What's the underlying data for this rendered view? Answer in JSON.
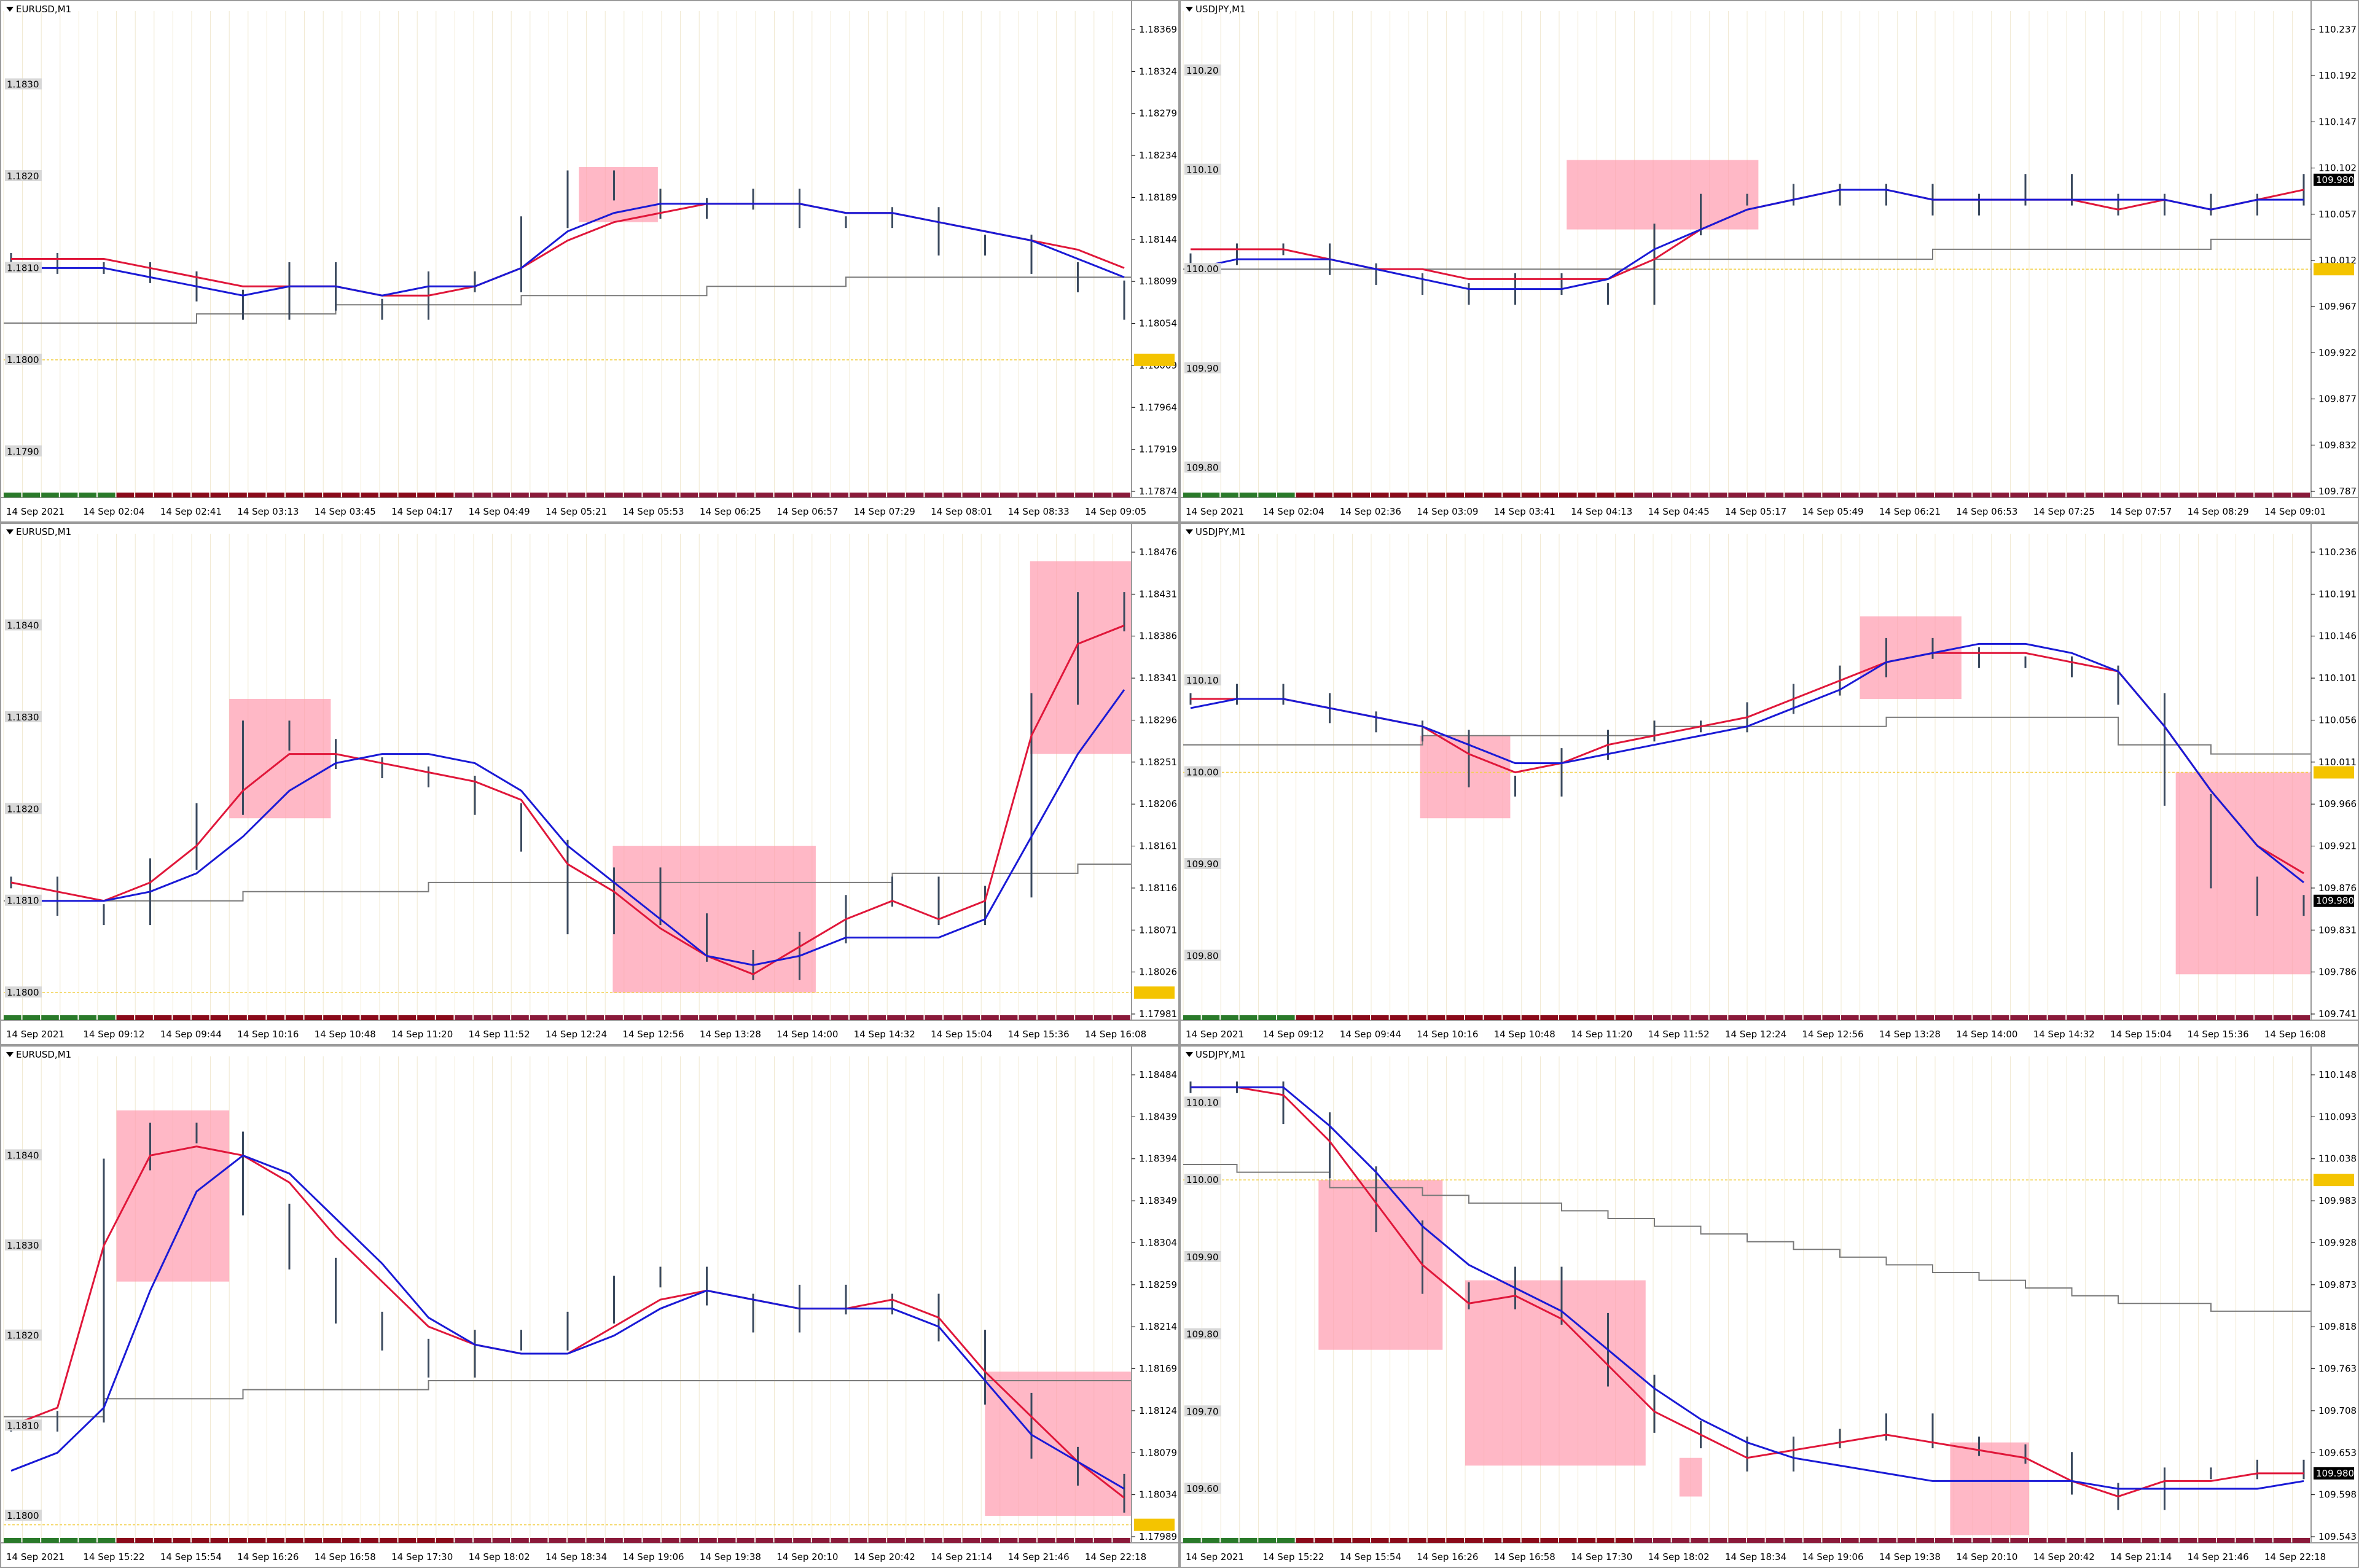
{
  "colors": {
    "ma_fast": "#1a1ad6",
    "ma_slow": "#e0173a",
    "step_line": "#7a7a7a",
    "highlight": "#ff9aae",
    "price_line": "#f2d04a",
    "candle": "#3b4a5e",
    "grid": "#f0e8d0",
    "current_badge_bg": "#000000",
    "current_badge_fg": "#ffffff",
    "yellow_badge_bg": "#f4c400"
  },
  "chart_data": [
    {
      "type": "candlestick",
      "symbol": "EURUSD,M1",
      "x_labels": [
        "14 Sep 2021",
        "14 Sep 02:04",
        "14 Sep 02:41",
        "14 Sep 03:13",
        "14 Sep 03:45",
        "14 Sep 04:17",
        "14 Sep 04:49",
        "14 Sep 05:21",
        "14 Sep 05:53",
        "14 Sep 06:25",
        "14 Sep 06:57",
        "14 Sep 07:29",
        "14 Sep 08:01",
        "14 Sep 08:33",
        "14 Sep 09:05"
      ],
      "y_right": [
        "1.18369",
        "1.18324",
        "1.18279",
        "1.18234",
        "1.18189",
        "1.18144",
        "1.18099",
        "1.18054",
        "1.18009",
        "1.17964",
        "1.17919",
        "1.17874"
      ],
      "y_left": [
        "1.1830",
        "1.1820",
        "1.1810",
        "1.1800",
        "1.1790"
      ],
      "ylim": [
        1.1785,
        1.1838
      ],
      "close": [
        1.1811,
        1.181,
        1.181,
        1.1809,
        1.1807,
        1.1805,
        1.181,
        1.1806,
        1.1805,
        1.1809,
        1.1808,
        1.1815,
        1.182,
        1.1818,
        1.1816,
        1.1817,
        1.1818,
        1.1815,
        1.1815,
        1.1816,
        1.1812,
        1.1813,
        1.181,
        1.1808,
        1.1805
      ],
      "ma_fast": [
        1.181,
        1.181,
        1.181,
        1.1809,
        1.1808,
        1.1807,
        1.1808,
        1.1808,
        1.1807,
        1.1808,
        1.1808,
        1.181,
        1.1814,
        1.1816,
        1.1817,
        1.1817,
        1.1817,
        1.1817,
        1.1816,
        1.1816,
        1.1815,
        1.1814,
        1.1813,
        1.1811,
        1.1809
      ],
      "ma_slow": [
        1.1811,
        1.1811,
        1.1811,
        1.181,
        1.1809,
        1.1808,
        1.1808,
        1.1808,
        1.1807,
        1.1807,
        1.1808,
        1.181,
        1.1813,
        1.1815,
        1.1816,
        1.1817,
        1.1817,
        1.1817,
        1.1816,
        1.1816,
        1.1815,
        1.1814,
        1.1813,
        1.1812,
        1.181
      ],
      "step": [
        1.1804,
        1.1804,
        1.1804,
        1.1804,
        1.1805,
        1.1805,
        1.1805,
        1.1806,
        1.1806,
        1.1806,
        1.1806,
        1.1807,
        1.1807,
        1.1807,
        1.1807,
        1.1808,
        1.1808,
        1.1808,
        1.1809,
        1.1809,
        1.1809,
        1.1809,
        1.1809,
        1.1809,
        1.1809
      ],
      "price_line": 1.18,
      "highlights": [
        {
          "x0": 0.51,
          "x1": 0.58,
          "y0": 1.1821,
          "y1": 1.1815
        }
      ],
      "current_badge": null,
      "yellow_badge": ""
    },
    {
      "type": "candlestick",
      "symbol": "USDJPY,M1",
      "x_labels": [
        "14 Sep 2021",
        "14 Sep 02:04",
        "14 Sep 02:36",
        "14 Sep 03:09",
        "14 Sep 03:41",
        "14 Sep 04:13",
        "14 Sep 04:45",
        "14 Sep 05:17",
        "14 Sep 05:49",
        "14 Sep 06:21",
        "14 Sep 06:53",
        "14 Sep 07:25",
        "14 Sep 07:57",
        "14 Sep 08:29",
        "14 Sep 09:01"
      ],
      "y_right": [
        "110.237",
        "110.192",
        "110.147",
        "110.102",
        "110.057",
        "110.012",
        "109.967",
        "109.922",
        "109.877",
        "109.832",
        "109.787"
      ],
      "y_left": [
        "110.20",
        "110.10",
        "110.00",
        "109.90",
        "109.80"
      ],
      "ylim": [
        109.77,
        110.26
      ],
      "close": [
        110.01,
        110.02,
        110.02,
        110.0,
        109.99,
        109.98,
        109.97,
        109.99,
        109.98,
        109.97,
        110.04,
        110.07,
        110.07,
        110.08,
        110.07,
        110.08,
        110.06,
        110.07,
        110.09,
        110.07,
        110.06,
        110.07,
        110.06,
        110.07,
        110.09
      ],
      "ma_fast": [
        110.0,
        110.01,
        110.01,
        110.01,
        110.0,
        109.99,
        109.98,
        109.98,
        109.98,
        109.99,
        110.02,
        110.04,
        110.06,
        110.07,
        110.08,
        110.08,
        110.07,
        110.07,
        110.07,
        110.07,
        110.07,
        110.07,
        110.06,
        110.07,
        110.07
      ],
      "ma_slow": [
        110.02,
        110.02,
        110.02,
        110.01,
        110.0,
        110.0,
        109.99,
        109.99,
        109.99,
        109.99,
        110.01,
        110.04,
        110.06,
        110.07,
        110.08,
        110.08,
        110.07,
        110.07,
        110.07,
        110.07,
        110.06,
        110.07,
        110.06,
        110.07,
        110.08
      ],
      "step": [
        110.0,
        110.0,
        110.0,
        110.0,
        110.0,
        110.0,
        110.0,
        110.0,
        110.0,
        110.0,
        110.01,
        110.01,
        110.01,
        110.01,
        110.01,
        110.01,
        110.02,
        110.02,
        110.02,
        110.02,
        110.02,
        110.02,
        110.03,
        110.03,
        110.03
      ],
      "price_line": 110.0,
      "highlights": [
        {
          "x0": 0.34,
          "x1": 0.51,
          "y0": 110.11,
          "y1": 110.04
        }
      ],
      "current_badge": "109.980",
      "yellow_badge": ""
    },
    {
      "type": "candlestick",
      "symbol": "EURUSD,M1",
      "x_labels": [
        "14 Sep 2021",
        "14 Sep 09:12",
        "14 Sep 09:44",
        "14 Sep 10:16",
        "14 Sep 10:48",
        "14 Sep 11:20",
        "14 Sep 11:52",
        "14 Sep 12:24",
        "14 Sep 12:56",
        "14 Sep 13:28",
        "14 Sep 14:00",
        "14 Sep 14:32",
        "14 Sep 15:04",
        "14 Sep 15:36",
        "14 Sep 16:08"
      ],
      "y_right": [
        "1.18476",
        "1.18431",
        "1.18386",
        "1.18341",
        "1.18296",
        "1.18251",
        "1.18206",
        "1.18161",
        "1.18116",
        "1.18071",
        "1.18026",
        "1.17981"
      ],
      "y_left": [
        "1.1840",
        "1.1830",
        "1.1820",
        "1.1810",
        "1.1800"
      ],
      "ylim": [
        1.1797,
        1.185
      ],
      "close": [
        1.1812,
        1.1809,
        1.1808,
        1.1814,
        1.182,
        1.1829,
        1.1827,
        1.1825,
        1.1824,
        1.1823,
        1.182,
        1.1816,
        1.1807,
        1.1813,
        1.1808,
        1.1804,
        1.1802,
        1.1806,
        1.181,
        1.1812,
        1.1808,
        1.1811,
        1.1832,
        1.1843,
        1.184
      ],
      "ma_fast": [
        1.181,
        1.181,
        1.181,
        1.1811,
        1.1813,
        1.1817,
        1.1822,
        1.1825,
        1.1826,
        1.1826,
        1.1825,
        1.1822,
        1.1816,
        1.1812,
        1.1808,
        1.1804,
        1.1803,
        1.1804,
        1.1806,
        1.1806,
        1.1806,
        1.1808,
        1.1817,
        1.1826,
        1.1833
      ],
      "ma_slow": [
        1.1812,
        1.1811,
        1.181,
        1.1812,
        1.1816,
        1.1822,
        1.1826,
        1.1826,
        1.1825,
        1.1824,
        1.1823,
        1.1821,
        1.1814,
        1.1811,
        1.1807,
        1.1804,
        1.1802,
        1.1805,
        1.1808,
        1.181,
        1.1808,
        1.181,
        1.1828,
        1.1838,
        1.184
      ],
      "step": [
        1.181,
        1.181,
        1.181,
        1.181,
        1.181,
        1.1811,
        1.1811,
        1.1811,
        1.1811,
        1.1812,
        1.1812,
        1.1812,
        1.1812,
        1.1812,
        1.1812,
        1.1812,
        1.1812,
        1.1812,
        1.1812,
        1.1813,
        1.1813,
        1.1813,
        1.1813,
        1.1814,
        1.1814
      ],
      "price_line": 1.18,
      "highlights": [
        {
          "x0": 0.2,
          "x1": 0.29,
          "y0": 1.1832,
          "y1": 1.1819
        },
        {
          "x0": 0.54,
          "x1": 0.72,
          "y0": 1.1816,
          "y1": 1.18
        },
        {
          "x0": 0.91,
          "x1": 1.0,
          "y0": 1.1847,
          "y1": 1.1826
        }
      ],
      "current_badge": null,
      "yellow_badge": ""
    },
    {
      "type": "candlestick",
      "symbol": "USDJPY,M1",
      "x_labels": [
        "14 Sep 2021",
        "14 Sep 09:12",
        "14 Sep 09:44",
        "14 Sep 10:16",
        "14 Sep 10:48",
        "14 Sep 11:20",
        "14 Sep 11:52",
        "14 Sep 12:24",
        "14 Sep 12:56",
        "14 Sep 13:28",
        "14 Sep 14:00",
        "14 Sep 14:32",
        "14 Sep 15:04",
        "14 Sep 15:36",
        "14 Sep 16:08"
      ],
      "y_right": [
        "110.236",
        "110.191",
        "110.146",
        "110.101",
        "110.056",
        "110.011",
        "109.966",
        "109.921",
        "109.876",
        "109.831",
        "109.786",
        "109.741"
      ],
      "y_left": [
        "110.10",
        "110.00",
        "109.90",
        "109.80"
      ],
      "ylim": [
        109.73,
        110.26
      ],
      "close": [
        110.08,
        110.09,
        110.08,
        110.06,
        110.05,
        110.04,
        109.99,
        109.98,
        110.02,
        110.04,
        110.05,
        110.05,
        110.07,
        110.09,
        110.11,
        110.14,
        110.13,
        110.12,
        110.12,
        110.11,
        110.08,
        109.97,
        109.88,
        109.85,
        109.86
      ],
      "ma_fast": [
        110.07,
        110.08,
        110.08,
        110.07,
        110.06,
        110.05,
        110.03,
        110.01,
        110.01,
        110.02,
        110.03,
        110.04,
        110.05,
        110.07,
        110.09,
        110.12,
        110.13,
        110.14,
        110.14,
        110.13,
        110.11,
        110.05,
        109.98,
        109.92,
        109.88
      ],
      "ma_slow": [
        110.08,
        110.08,
        110.08,
        110.07,
        110.06,
        110.05,
        110.02,
        110.0,
        110.01,
        110.03,
        110.04,
        110.05,
        110.06,
        110.08,
        110.1,
        110.12,
        110.13,
        110.13,
        110.13,
        110.12,
        110.11,
        110.05,
        109.98,
        109.92,
        109.89
      ],
      "step": [
        110.03,
        110.03,
        110.03,
        110.03,
        110.03,
        110.04,
        110.04,
        110.04,
        110.04,
        110.04,
        110.05,
        110.05,
        110.05,
        110.05,
        110.05,
        110.06,
        110.06,
        110.06,
        110.06,
        110.06,
        110.03,
        110.03,
        110.02,
        110.02,
        110.02
      ],
      "price_line": 110.0,
      "highlights": [
        {
          "x0": 0.21,
          "x1": 0.29,
          "y0": 110.04,
          "y1": 109.95
        },
        {
          "x0": 0.6,
          "x1": 0.69,
          "y0": 110.17,
          "y1": 110.08
        },
        {
          "x0": 0.88,
          "x1": 1.0,
          "y0": 110.0,
          "y1": 109.78
        }
      ],
      "current_badge": "109.980",
      "yellow_badge": ""
    },
    {
      "type": "candlestick",
      "symbol": "EURUSD,M1",
      "x_labels": [
        "14 Sep 2021",
        "14 Sep 15:22",
        "14 Sep 15:54",
        "14 Sep 16:26",
        "14 Sep 16:58",
        "14 Sep 17:30",
        "14 Sep 18:02",
        "14 Sep 18:34",
        "14 Sep 19:06",
        "14 Sep 19:38",
        "14 Sep 20:10",
        "14 Sep 20:42",
        "14 Sep 21:14",
        "14 Sep 21:46",
        "14 Sep 22:18"
      ],
      "y_right": [
        "1.18484",
        "1.18439",
        "1.18394",
        "1.18349",
        "1.18304",
        "1.18259",
        "1.18214",
        "1.18169",
        "1.18124",
        "1.18079",
        "1.18034",
        "1.17989"
      ],
      "y_left": [
        "1.1840",
        "1.1830",
        "1.1820",
        "1.1810",
        "1.1800"
      ],
      "ylim": [
        1.1797,
        1.1851
      ],
      "close": [
        1.181,
        1.1811,
        1.1839,
        1.1843,
        1.1842,
        1.1834,
        1.1828,
        1.1822,
        1.1819,
        1.1816,
        1.182,
        1.1819,
        1.1822,
        1.1826,
        1.1827,
        1.1824,
        1.1821,
        1.1825,
        1.1823,
        1.1824,
        1.182,
        1.1813,
        1.1807,
        1.1804,
        1.1801
      ],
      "ma_fast": [
        1.1805,
        1.1807,
        1.1812,
        1.1825,
        1.1836,
        1.184,
        1.1838,
        1.1833,
        1.1828,
        1.1822,
        1.1819,
        1.1818,
        1.1818,
        1.182,
        1.1823,
        1.1825,
        1.1824,
        1.1823,
        1.1823,
        1.1823,
        1.1821,
        1.1815,
        1.1809,
        1.1806,
        1.1803
      ],
      "ma_slow": [
        1.181,
        1.1812,
        1.183,
        1.184,
        1.1841,
        1.184,
        1.1837,
        1.1831,
        1.1826,
        1.1821,
        1.1819,
        1.1818,
        1.1818,
        1.1821,
        1.1824,
        1.1825,
        1.1824,
        1.1823,
        1.1823,
        1.1824,
        1.1822,
        1.1816,
        1.1811,
        1.1806,
        1.1802
      ],
      "step": [
        1.1811,
        1.1811,
        1.1813,
        1.1813,
        1.1813,
        1.1814,
        1.1814,
        1.1814,
        1.1814,
        1.1815,
        1.1815,
        1.1815,
        1.1815,
        1.1815,
        1.1815,
        1.1815,
        1.1815,
        1.1815,
        1.1815,
        1.1815,
        1.1815,
        1.1815,
        1.1815,
        1.1815,
        1.1815
      ],
      "price_line": 1.1799,
      "highlights": [
        {
          "x0": 0.1,
          "x1": 0.2,
          "y0": 1.1845,
          "y1": 1.1826
        },
        {
          "x0": 0.87,
          "x1": 1.0,
          "y0": 1.1816,
          "y1": 1.18
        }
      ],
      "current_badge": null,
      "yellow_badge": ""
    },
    {
      "type": "candlestick",
      "symbol": "USDJPY,M1",
      "x_labels": [
        "14 Sep 2021",
        "14 Sep 15:22",
        "14 Sep 15:54",
        "14 Sep 16:26",
        "14 Sep 16:58",
        "14 Sep 17:30",
        "14 Sep 18:02",
        "14 Sep 18:34",
        "14 Sep 19:06",
        "14 Sep 19:38",
        "14 Sep 20:10",
        "14 Sep 20:42",
        "14 Sep 21:14",
        "14 Sep 21:46",
        "14 Sep 22:18"
      ],
      "y_right": [
        "110.148",
        "110.093",
        "110.038",
        "109.983",
        "109.928",
        "109.873",
        "109.818",
        "109.763",
        "109.708",
        "109.653",
        "109.598",
        "109.543"
      ],
      "y_left": [
        "110.10",
        "110.00",
        "109.90",
        "109.80",
        "109.70",
        "109.60"
      ],
      "ylim": [
        109.53,
        110.16
      ],
      "close": [
        110.12,
        110.12,
        110.08,
        110.01,
        109.94,
        109.86,
        109.84,
        109.88,
        109.82,
        109.74,
        109.68,
        109.66,
        109.63,
        109.66,
        109.67,
        109.69,
        109.66,
        109.65,
        109.64,
        109.6,
        109.58,
        109.62,
        109.62,
        109.63,
        109.62
      ],
      "ma_fast": [
        110.12,
        110.12,
        110.12,
        110.07,
        110.01,
        109.94,
        109.89,
        109.86,
        109.83,
        109.78,
        109.73,
        109.69,
        109.66,
        109.64,
        109.63,
        109.62,
        109.61,
        109.61,
        109.61,
        109.61,
        109.6,
        109.6,
        109.6,
        109.6,
        109.61
      ],
      "ma_slow": [
        110.12,
        110.12,
        110.11,
        110.05,
        109.97,
        109.89,
        109.84,
        109.85,
        109.82,
        109.76,
        109.7,
        109.67,
        109.64,
        109.65,
        109.66,
        109.67,
        109.66,
        109.65,
        109.64,
        109.61,
        109.59,
        109.61,
        109.61,
        109.62,
        109.62
      ],
      "step": [
        110.02,
        110.01,
        110.01,
        109.99,
        109.99,
        109.98,
        109.97,
        109.97,
        109.96,
        109.95,
        109.94,
        109.93,
        109.92,
        109.91,
        109.9,
        109.89,
        109.88,
        109.87,
        109.86,
        109.85,
        109.84,
        109.84,
        109.83,
        109.83,
        109.83
      ],
      "price_line": 110.0,
      "highlights": [
        {
          "x0": 0.12,
          "x1": 0.23,
          "y0": 110.0,
          "y1": 109.78
        },
        {
          "x0": 0.25,
          "x1": 0.41,
          "y0": 109.87,
          "y1": 109.63
        },
        {
          "x0": 0.44,
          "x1": 0.46,
          "y0": 109.64,
          "y1": 109.59
        },
        {
          "x0": 0.68,
          "x1": 0.75,
          "y0": 109.66,
          "y1": 109.54
        }
      ],
      "current_badge": "109.980",
      "yellow_badge": ""
    }
  ]
}
